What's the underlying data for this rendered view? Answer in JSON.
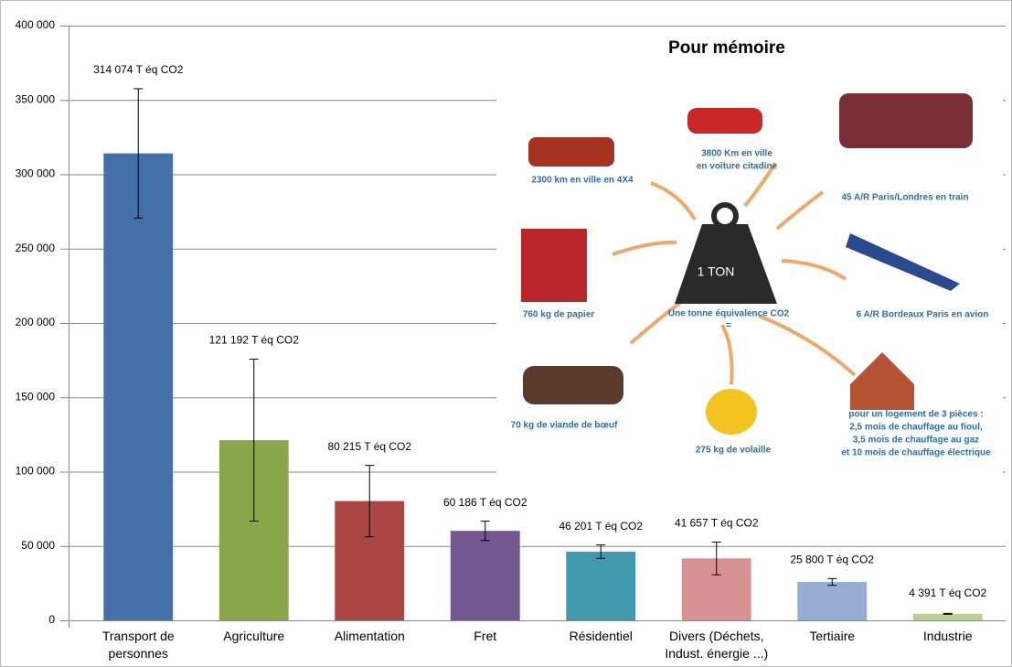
{
  "chart_data": {
    "type": "bar",
    "categories": [
      "Transport de personnes",
      "Agriculture",
      "Alimentation",
      "Fret",
      "Résidentiel",
      "Divers (Déchets, Indust. énergie ...)",
      "Tertiaire",
      "Industrie"
    ],
    "values": [
      314074,
      121192,
      80215,
      60186,
      46201,
      41657,
      25800,
      4391
    ],
    "value_labels": [
      "314 074 T éq CO2",
      "121 192 T éq CO2",
      "80 215 T éq CO2",
      "60 186 T éq CO2",
      "46 201 T éq CO2",
      "41 657 T éq CO2",
      "25 800 T éq CO2",
      "4 391 T éq CO2"
    ],
    "errors": [
      43500,
      54500,
      24000,
      6500,
      4500,
      11000,
      2300,
      300
    ],
    "colors": [
      "#4571a9",
      "#8ba64b",
      "#aa4644",
      "#735790",
      "#4199ad",
      "#d69391",
      "#97acd3",
      "#b8d08f"
    ],
    "ylim": [
      0,
      400000
    ],
    "yticks": [
      0,
      {
        "value": 50000,
        "label": "50 000"
      },
      {
        "value": 100000,
        "label": "100 000"
      },
      {
        "value": 150000,
        "label": "150 000"
      },
      {
        "value": 200000,
        "label": "200 000"
      },
      {
        "value": 250000,
        "label": "250 000"
      },
      {
        "value": 300000,
        "label": "300 000"
      },
      {
        "value": 350000,
        "label": "350 000"
      },
      {
        "value": 400000,
        "label": "400 000"
      }
    ],
    "grid": true
  },
  "inset": {
    "title": "Pour mémoire",
    "weight": "1 TON",
    "center": [
      "Une tonne équivalence CO2",
      "="
    ],
    "items": [
      {
        "lines": [
          "2300 km en ville en 4X4"
        ]
      },
      {
        "lines": [
          "3800 Km en ville",
          "en voiture citadine"
        ]
      },
      {
        "lines": [
          "45 A/R Paris/Londres en train"
        ]
      },
      {
        "lines": [
          "760 kg de papier"
        ]
      },
      {
        "lines": [
          "6 A/R Bordeaux Paris en avion"
        ]
      },
      {
        "lines": [
          "70 kg de viande de bœuf"
        ]
      },
      {
        "lines": [
          "275 kg de volaille"
        ]
      },
      {
        "lines": [
          "pour un logement de 3 pièces :",
          "2,5 mois de chauffage au fioul,",
          "3,5 mois de chauffage au gaz",
          "et 10 mois de chauffage électrique"
        ]
      }
    ]
  }
}
